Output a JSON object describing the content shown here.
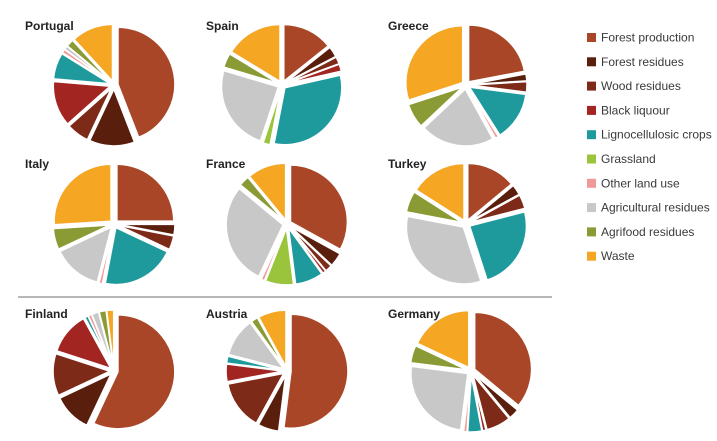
{
  "legend": [
    {
      "label": "Forest production",
      "color": "#a84627"
    },
    {
      "label": "Forest  residues",
      "color": "#5a1e0c"
    },
    {
      "label": "Wood residues",
      "color": "#7e2a18"
    },
    {
      "label": "Black liquour",
      "color": "#a22522"
    },
    {
      "label": "Lignocellulosic crops",
      "color": "#1f9a9c"
    },
    {
      "label": "Grassland",
      "color": "#9ac43c"
    },
    {
      "label": "Other land use",
      "color": "#ef9a98"
    },
    {
      "label": "Agricultural residues",
      "color": "#c8c8c8"
    },
    {
      "label": "Agrifood residues",
      "color": "#8a9a34"
    },
    {
      "label": "Waste",
      "color": "#f5a623"
    }
  ],
  "chart_data": [
    {
      "type": "pie",
      "title": "Portugal",
      "categories": [
        "Forest production",
        "Forest  residues",
        "Wood residues",
        "Black liquour",
        "Lignocellulosic crops",
        "Grassland",
        "Other land use",
        "Agricultural residues",
        "Agrifood residues",
        "Waste"
      ],
      "values": [
        41,
        12,
        6,
        12,
        7,
        0,
        1,
        1,
        2,
        11
      ]
    },
    {
      "type": "pie",
      "title": "Spain",
      "categories": [
        "Forest production",
        "Forest  residues",
        "Wood residues",
        "Black liquour",
        "Lignocellulosic crops",
        "Grassland",
        "Other land use",
        "Agricultural residues",
        "Agrifood residues",
        "Waste"
      ],
      "values": [
        14,
        3,
        2,
        2,
        31,
        2,
        0,
        24,
        4,
        16
      ]
    },
    {
      "type": "pie",
      "title": "Greece",
      "categories": [
        "Forest production",
        "Forest  residues",
        "Wood residues",
        "Black liquour",
        "Lignocellulosic crops",
        "Grassland",
        "Other land use",
        "Agricultural residues",
        "Agrifood residues",
        "Waste"
      ],
      "values": [
        22,
        2,
        3,
        0,
        14,
        0,
        1,
        21,
        7,
        30
      ]
    },
    {
      "type": "pie",
      "title": "Italy",
      "categories": [
        "Forest production",
        "Forest  residues",
        "Wood residues",
        "Black liquour",
        "Lignocellulosic crops",
        "Grassland",
        "Other land use",
        "Agricultural residues",
        "Agrifood residues",
        "Waste"
      ],
      "values": [
        25,
        3,
        4,
        0,
        21,
        0,
        1,
        14,
        6,
        26
      ]
    },
    {
      "type": "pie",
      "title": "France",
      "categories": [
        "Forest production",
        "Forest  residues",
        "Wood residues",
        "Black liquour",
        "Lignocellulosic crops",
        "Grassland",
        "Other land use",
        "Agricultural residues",
        "Agrifood residues",
        "Waste"
      ],
      "values": [
        33,
        4,
        2,
        1,
        8,
        8,
        1,
        29,
        3,
        11
      ]
    },
    {
      "type": "pie",
      "title": "Turkey",
      "categories": [
        "Forest production",
        "Forest  residues",
        "Wood residues",
        "Black liquour",
        "Lignocellulosic crops",
        "Grassland",
        "Other land use",
        "Agricultural residues",
        "Agrifood residues",
        "Waste"
      ],
      "values": [
        14,
        3,
        4,
        0,
        24,
        0,
        0,
        33,
        6,
        16
      ]
    },
    {
      "type": "pie",
      "title": "Finland",
      "categories": [
        "Forest production",
        "Forest  residues",
        "Wood residues",
        "Black liquour",
        "Lignocellulosic crops",
        "Grassland",
        "Other land use",
        "Agricultural residues",
        "Agrifood residues",
        "Waste"
      ],
      "values": [
        57,
        11,
        12,
        12,
        1,
        0,
        1,
        2,
        2,
        2
      ]
    },
    {
      "type": "pie",
      "title": "Austria",
      "categories": [
        "Forest production",
        "Forest  residues",
        "Wood residues",
        "Black liquour",
        "Lignocellulosic crops",
        "Grassland",
        "Other land use",
        "Agricultural residues",
        "Agrifood residues",
        "Waste"
      ],
      "values": [
        52,
        6,
        14,
        5,
        2,
        0,
        0,
        11,
        2,
        8
      ]
    },
    {
      "type": "pie",
      "title": "Germany",
      "categories": [
        "Forest production",
        "Forest  residues",
        "Wood residues",
        "Black liquour",
        "Lignocellulosic crops",
        "Grassland",
        "Other land use",
        "Agricultural residues",
        "Agrifood residues",
        "Waste"
      ],
      "values": [
        36,
        3,
        7,
        1,
        4,
        0,
        1,
        25,
        5,
        18
      ]
    }
  ]
}
